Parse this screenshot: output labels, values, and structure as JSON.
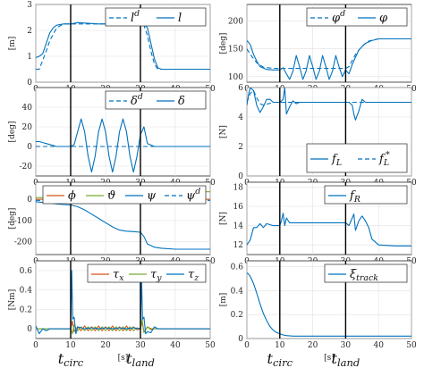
{
  "chart_data": [
    {
      "id": "length",
      "type": "line",
      "ylabel": "[m]",
      "xlim": [
        0,
        50
      ],
      "ylim": [
        0,
        3
      ],
      "xticks": [
        0,
        10,
        20,
        30,
        40,
        50
      ],
      "yticks": [
        0,
        1,
        2,
        3
      ],
      "legend": {
        "position": "top-right",
        "entries": [
          "l^d",
          "l"
        ]
      },
      "series": [
        {
          "name": "l^d",
          "style": "dashed",
          "color": "#0072BD",
          "x": [
            0,
            1,
            3,
            4,
            6,
            8,
            10,
            12,
            18,
            24,
            29,
            30,
            31,
            32,
            33,
            34,
            35,
            36,
            40,
            45,
            50
          ],
          "y": [
            0.5,
            0.5,
            1.2,
            1.6,
            2.1,
            2.25,
            2.25,
            2.25,
            2.25,
            2.25,
            2.25,
            2.25,
            2.2,
            1.8,
            1.2,
            0.7,
            0.5,
            0.5,
            0.5,
            0.5,
            0.5
          ]
        },
        {
          "name": "l",
          "style": "solid",
          "color": "#0072BD",
          "x": [
            0,
            1,
            2,
            3,
            4,
            5,
            6,
            8,
            10,
            12,
            18,
            24,
            30,
            31,
            32,
            33,
            34,
            35,
            36,
            40,
            50
          ],
          "y": [
            0.95,
            1.0,
            1.1,
            1.5,
            1.9,
            2.1,
            2.2,
            2.25,
            2.25,
            2.3,
            2.25,
            2.25,
            2.25,
            2.25,
            2.1,
            1.5,
            0.9,
            0.55,
            0.5,
            0.5,
            0.5
          ]
        }
      ]
    },
    {
      "id": "heading",
      "type": "line",
      "ylabel": "[deg]",
      "xlim": [
        0,
        50
      ],
      "ylim": [
        90,
        230
      ],
      "xticks": [
        0,
        10,
        20,
        30,
        40,
        50
      ],
      "yticks": [
        100,
        150,
        200
      ],
      "legend": {
        "position": "top-right",
        "entries": [
          "φ^d",
          "φ"
        ]
      },
      "series": [
        {
          "name": "φ^d",
          "style": "dashed",
          "color": "#0072BD",
          "x": [
            0,
            1,
            3,
            5,
            8,
            10,
            20,
            30,
            31,
            33,
            35,
            37,
            40,
            45,
            50
          ],
          "y": [
            150,
            140,
            125,
            117,
            115,
            115,
            115,
            115,
            118,
            140,
            155,
            164,
            168,
            168,
            168
          ]
        },
        {
          "name": "φ",
          "style": "solid",
          "color": "#0072BD",
          "x": [
            0,
            1,
            2,
            3,
            4,
            6,
            8,
            10,
            11,
            12,
            13,
            14,
            15,
            16,
            17,
            18,
            19,
            20,
            21,
            22,
            23,
            24,
            25,
            26,
            27,
            28,
            29,
            30,
            31,
            32,
            34,
            36,
            38,
            40,
            45,
            50
          ],
          "y": [
            165,
            158,
            140,
            128,
            118,
            113,
            112,
            112,
            116,
            105,
            95,
            110,
            138,
            118,
            95,
            110,
            138,
            118,
            95,
            110,
            138,
            118,
            95,
            110,
            138,
            118,
            100,
            112,
            105,
            122,
            148,
            160,
            165,
            168,
            168,
            168
          ]
        }
      ]
    },
    {
      "id": "lean",
      "type": "line",
      "ylabel": "[deg]",
      "xlim": [
        0,
        50
      ],
      "ylim": [
        -30,
        60
      ],
      "xticks": [
        0,
        10,
        20,
        30,
        40,
        50
      ],
      "yticks": [
        -20,
        0,
        20,
        40
      ],
      "legend": {
        "position": "top-right",
        "entries": [
          "δ^d",
          "δ"
        ]
      },
      "series": [
        {
          "name": "δ^d",
          "style": "dashed",
          "color": "#0072BD",
          "x": [
            0,
            50
          ],
          "y": [
            0,
            0
          ]
        },
        {
          "name": "δ",
          "style": "solid",
          "color": "#0072BD",
          "x": [
            0,
            1,
            2,
            3,
            4,
            5,
            6,
            7,
            8,
            9,
            10,
            11,
            12,
            13,
            14,
            15,
            16,
            17,
            18,
            19,
            20,
            21,
            22,
            23,
            24,
            25,
            26,
            27,
            28,
            29,
            30,
            31,
            32,
            34,
            40,
            50
          ],
          "y": [
            5,
            5,
            4,
            3,
            2,
            1,
            0,
            0,
            0,
            0,
            0,
            2,
            15,
            28,
            15,
            -10,
            -26,
            -10,
            15,
            28,
            15,
            -10,
            -26,
            -10,
            15,
            28,
            15,
            -10,
            -26,
            -10,
            12,
            20,
            3,
            0,
            0,
            0
          ]
        }
      ]
    },
    {
      "id": "force_left",
      "type": "line",
      "ylabel": "[N]",
      "xlim": [
        0,
        50
      ],
      "ylim": [
        0,
        6
      ],
      "xticks": [
        0,
        10,
        20,
        30,
        40,
        50
      ],
      "yticks": [
        0,
        2,
        4,
        6
      ],
      "legend": {
        "position": "bottom-right",
        "entries": [
          "f_L",
          "f_L^*"
        ]
      },
      "series": [
        {
          "name": "f_L",
          "style": "solid",
          "color": "#0072BD",
          "x": [
            0,
            0.5,
            1,
            2,
            3,
            4,
            5,
            6,
            7,
            8,
            10,
            11,
            11.5,
            12,
            13,
            14,
            15,
            16,
            18,
            20,
            25,
            29,
            30,
            31,
            32,
            32.5,
            33,
            34,
            35,
            36,
            40,
            50
          ],
          "y": [
            4.8,
            5.5,
            6.0,
            5.8,
            4.8,
            4.3,
            4.7,
            5.2,
            5.2,
            5.0,
            5.0,
            5.2,
            6.0,
            4.2,
            4.7,
            5.1,
            4.9,
            5.0,
            5.0,
            5.0,
            5.0,
            5.0,
            5.0,
            5.0,
            4.8,
            4.2,
            3.8,
            4.4,
            5.2,
            5.0,
            5.0,
            5.0
          ]
        },
        {
          "name": "f_L^*",
          "style": "dashed",
          "color": "#0072BD",
          "x": [
            0,
            1,
            2,
            3,
            4,
            5,
            8,
            10,
            50
          ],
          "y": [
            5.0,
            5.6,
            5.8,
            5.3,
            4.9,
            4.8,
            5.0,
            5.0,
            5.0
          ]
        }
      ]
    },
    {
      "id": "euler",
      "type": "line",
      "ylabel": "[deg]",
      "xlim": [
        0,
        50
      ],
      "ylim": [
        -260,
        80
      ],
      "xticks": [
        0,
        10,
        20,
        30,
        40,
        50
      ],
      "yticks": [
        -200,
        -100,
        0
      ],
      "legend": {
        "position": "top",
        "entries": [
          "ϕ",
          "ϑ",
          "ψ",
          "ψ^d"
        ]
      },
      "series": [
        {
          "name": "ϕ",
          "style": "solid",
          "color": "#D95319",
          "x": [
            0,
            10,
            11,
            12,
            30,
            31,
            32,
            50
          ],
          "y": [
            0,
            0,
            2,
            0,
            0,
            3,
            0,
            0
          ]
        },
        {
          "name": "ϑ",
          "style": "solid",
          "color": "#77AC30",
          "x": [
            0,
            10,
            12,
            20,
            28,
            30,
            32,
            34,
            36,
            40,
            50
          ],
          "y": [
            8,
            8,
            6,
            8,
            10,
            10,
            22,
            30,
            33,
            35,
            35
          ]
        },
        {
          "name": "ψ",
          "style": "solid",
          "color": "#0072BD",
          "x": [
            0,
            2,
            4,
            6,
            8,
            10,
            12,
            14,
            16,
            18,
            20,
            22,
            24,
            26,
            28,
            30,
            31,
            32,
            34,
            36,
            40,
            45,
            50
          ],
          "y": [
            -12,
            -15,
            -18,
            -22,
            -25,
            -27,
            -35,
            -50,
            -70,
            -90,
            -110,
            -130,
            -145,
            -150,
            -152,
            -155,
            -175,
            -210,
            -225,
            -230,
            -235,
            -235,
            -235
          ]
        },
        {
          "name": "ψ^d",
          "style": "dashed",
          "color": "#0072BD",
          "x": [
            0,
            10,
            50
          ],
          "y": [
            -5,
            -5,
            -5
          ]
        }
      ]
    },
    {
      "id": "force_right",
      "type": "line",
      "ylabel": "[N]",
      "xlim": [
        0,
        50
      ],
      "ylim": [
        11,
        18.5
      ],
      "xticks": [
        0,
        10,
        20,
        30,
        40,
        50
      ],
      "yticks": [
        12,
        14,
        16,
        18
      ],
      "legend": {
        "position": "top-right",
        "entries": [
          "f_R"
        ]
      },
      "series": [
        {
          "name": "f_R",
          "style": "solid",
          "color": "#0072BD",
          "x": [
            0,
            1,
            2,
            3,
            4,
            5,
            6,
            8,
            10,
            10.5,
            11,
            11.5,
            12,
            13,
            14,
            16,
            20,
            25,
            30,
            31,
            32,
            32.5,
            33,
            34,
            35,
            36,
            37,
            38,
            40,
            45,
            50
          ],
          "y": [
            12,
            12.5,
            13.8,
            13.8,
            14.2,
            13.8,
            14.2,
            14.0,
            14.0,
            14.5,
            15.3,
            14.0,
            14.8,
            14.3,
            14.3,
            14.3,
            14.3,
            14.3,
            14.3,
            14.0,
            14.8,
            15.2,
            13.5,
            14.5,
            15.0,
            14.5,
            13.8,
            12.6,
            12.0,
            11.9,
            11.9
          ]
        }
      ]
    },
    {
      "id": "torques",
      "type": "line",
      "ylabel": "[Nm]",
      "xlim": [
        0,
        50
      ],
      "ylim": [
        -0.1,
        0.7
      ],
      "xticks": [
        0,
        10,
        20,
        30,
        40,
        50
      ],
      "yticks": [
        0,
        0.2,
        0.4,
        0.6
      ],
      "xlabel": "[s]",
      "marker_labels": [
        "t_circ",
        "t_land"
      ],
      "legend": {
        "position": "top-right",
        "entries": [
          "τ_x",
          "τ_y",
          "τ_z"
        ]
      },
      "series": [
        {
          "name": "τ_x",
          "style": "solid",
          "color": "#D95319",
          "x": [
            0,
            2,
            4,
            6,
            8,
            10,
            10.5,
            11,
            12,
            13,
            14,
            15,
            16,
            17,
            18,
            19,
            20,
            21,
            22,
            23,
            24,
            25,
            26,
            27,
            28,
            29,
            30,
            30.5,
            31,
            32,
            33,
            34,
            36,
            40,
            50
          ],
          "y": [
            0,
            0,
            0,
            0,
            0,
            0,
            0.08,
            -0.03,
            0.02,
            -0.02,
            0.03,
            -0.02,
            0.02,
            -0.02,
            0.03,
            -0.02,
            0.02,
            -0.02,
            0.03,
            -0.02,
            0.02,
            -0.02,
            0.03,
            -0.02,
            0.02,
            -0.01,
            0,
            0.07,
            -0.03,
            0.02,
            0,
            0,
            0,
            0,
            0
          ]
        },
        {
          "name": "τ_y",
          "style": "solid",
          "color": "#77AC30",
          "x": [
            0,
            2,
            4,
            6,
            8,
            10,
            10.5,
            11,
            12,
            13,
            14,
            15,
            16,
            17,
            18,
            19,
            20,
            21,
            22,
            23,
            24,
            25,
            26,
            27,
            28,
            29,
            30,
            30.5,
            31,
            32,
            33,
            34,
            36,
            40,
            50
          ],
          "y": [
            0,
            0,
            0,
            0,
            0,
            0,
            -0.05,
            0.04,
            -0.02,
            0.02,
            -0.02,
            0.02,
            -0.02,
            0.02,
            -0.02,
            0.02,
            -0.02,
            0.02,
            -0.02,
            0.02,
            -0.02,
            0.02,
            -0.02,
            0.02,
            -0.02,
            0.01,
            0,
            0.1,
            -0.04,
            0.02,
            -0.01,
            0,
            0,
            0,
            0
          ]
        },
        {
          "name": "τ_z",
          "style": "solid",
          "color": "#0072BD",
          "x": [
            0,
            1,
            2,
            3,
            4,
            5,
            6,
            8,
            10,
            10.3,
            10.6,
            11,
            11.5,
            12,
            14,
            16,
            18,
            20,
            22,
            24,
            26,
            28,
            30,
            30.3,
            30.6,
            31,
            31.5,
            32,
            33,
            34,
            35,
            36,
            40,
            50
          ],
          "y": [
            0.03,
            -0.05,
            0,
            -0.02,
            0,
            0,
            0,
            0,
            0,
            0.6,
            0.1,
            0.12,
            -0.05,
            0.02,
            0,
            0.01,
            0,
            0.01,
            0,
            0.01,
            0,
            0.01,
            0,
            0.55,
            0.1,
            0.12,
            -0.05,
            -0.03,
            -0.04,
            0.02,
            0,
            0,
            0,
            0
          ]
        }
      ]
    },
    {
      "id": "tracking_error",
      "type": "line",
      "ylabel": "[m]",
      "xlim": [
        0,
        50
      ],
      "ylim": [
        0,
        0.65
      ],
      "xticks": [
        0,
        10,
        20,
        30,
        40,
        50
      ],
      "yticks": [
        0,
        0.2,
        0.4,
        0.6
      ],
      "xlabel": "[s]",
      "marker_labels": [
        "t_circ",
        "t_land"
      ],
      "legend": {
        "position": "top-right",
        "entries": [
          "ξ_track"
        ]
      },
      "series": [
        {
          "name": "ξ_track",
          "style": "solid",
          "color": "#0072BD",
          "x": [
            0,
            0.5,
            1,
            2,
            3,
            4,
            5,
            6,
            7,
            8,
            9,
            10,
            11,
            12,
            14,
            20,
            30,
            40,
            50
          ],
          "y": [
            0.55,
            0.54,
            0.52,
            0.46,
            0.38,
            0.29,
            0.21,
            0.15,
            0.1,
            0.07,
            0.05,
            0.04,
            0.03,
            0.025,
            0.02,
            0.02,
            0.02,
            0.02,
            0.02
          ]
        }
      ]
    }
  ],
  "event_markers": {
    "t_circ": 10,
    "t_land": 30
  }
}
